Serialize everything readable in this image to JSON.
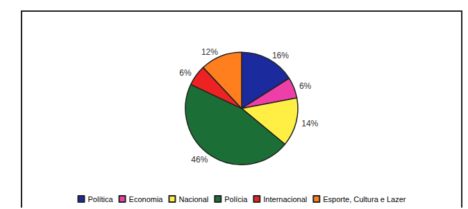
{
  "chart_data": {
    "type": "pie",
    "categories": [
      "Política",
      "Economia",
      "Nacional",
      "Polícia",
      "Internacional",
      "Esporte, Cultura e Lazer"
    ],
    "values": [
      16,
      6,
      14,
      46,
      6,
      12
    ],
    "value_labels": [
      "16%",
      "6%",
      "14%",
      "46%",
      "6%",
      "12%"
    ],
    "colors": [
      "#1b2a9c",
      "#ee3fa8",
      "#ffee44",
      "#1b6e36",
      "#ee2222",
      "#ff7f1e"
    ],
    "data_labels": true,
    "legend": "bottom"
  }
}
